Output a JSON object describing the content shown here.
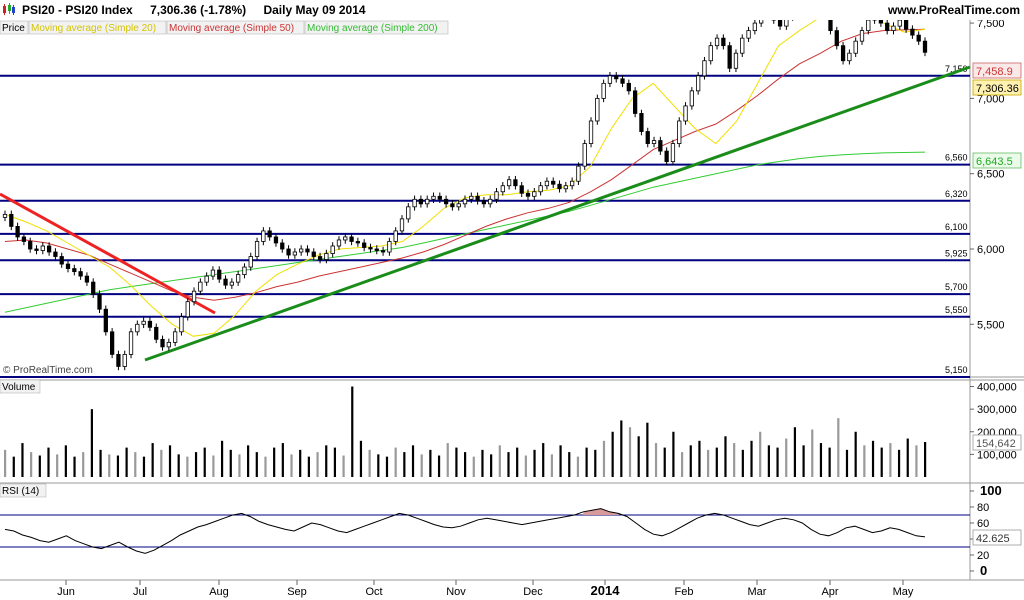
{
  "header": {
    "instrument": "PSI20 - PSI20 Index",
    "price_change": "7,306.36 (-1.78%)",
    "period_date": "Daily  May 09 2014",
    "site": "www.ProRealTime.com"
  },
  "legend": {
    "price": "Price",
    "ma20": "Moving average (Simple 20)",
    "ma50": "Moving average (Simple 50)",
    "ma200": "Moving average (Simple 200)"
  },
  "watermark": "© ProRealTime.com",
  "colors": {
    "ma20": "#f0e000",
    "ma50": "#cc3333",
    "ma200": "#33cc33",
    "trend_up": "#1a8c1a",
    "trend_down": "#ee2222",
    "level_line": "#000080",
    "up_candle": "#ffffff",
    "down_candle": "#000000",
    "rsi_overbought_fill": "#d89a9a"
  },
  "labels": {
    "ma50_value": "7,458.9",
    "last_price": "7,306.36",
    "ma200_value": "6,643.5",
    "volume_value": "154,642",
    "rsi_value": "42.625"
  },
  "panels": {
    "volume_title": "Volume",
    "rsi_title": "RSI (14)"
  },
  "chart_data": [
    {
      "type": "candlestick",
      "title": "PSI20 - PSI20 Index",
      "timeframe": "Daily",
      "x_start": "2014-05-09 (last bar)",
      "price_axis_ticks": [
        "5,500",
        "6,000",
        "6,500",
        "7,000",
        "7,500"
      ],
      "ylim": [
        5130,
        7620
      ],
      "horizontal_levels": [
        7550,
        7150,
        6560,
        6320,
        6100,
        5925,
        5700,
        5550,
        5150
      ],
      "horizontal_level_labels": [
        "7,550",
        "7,150",
        "6,560",
        "6,320",
        "6,100",
        "5,925",
        "5,700",
        "5,550",
        "5,150"
      ],
      "x_tick_labels": [
        "Jun",
        "Jul",
        "Aug",
        "Sep",
        "Oct",
        "Nov",
        "Dec",
        "2014",
        "Feb",
        "Mar",
        "Apr",
        "May"
      ],
      "close_series": [
        6230,
        6150,
        6080,
        6050,
        6000,
        5990,
        6020,
        5980,
        5950,
        5900,
        5870,
        5850,
        5820,
        5780,
        5700,
        5600,
        5450,
        5300,
        5220,
        5300,
        5450,
        5500,
        5520,
        5480,
        5400,
        5350,
        5380,
        5450,
        5550,
        5650,
        5720,
        5780,
        5820,
        5860,
        5800,
        5760,
        5780,
        5830,
        5880,
        5950,
        6050,
        6120,
        6080,
        6040,
        6000,
        5960,
        5980,
        6000,
        5980,
        5950,
        5930,
        5970,
        6020,
        6060,
        6080,
        6050,
        6040,
        6010,
        6000,
        5990,
        5980,
        6050,
        6120,
        6200,
        6280,
        6330,
        6300,
        6330,
        6350,
        6330,
        6300,
        6280,
        6300,
        6330,
        6350,
        6320,
        6300,
        6330,
        6380,
        6420,
        6460,
        6420,
        6370,
        6350,
        6380,
        6420,
        6450,
        6430,
        6400,
        6420,
        6450,
        6550,
        6700,
        6850,
        7000,
        7100,
        7150,
        7130,
        7100,
        7050,
        6900,
        6780,
        6700,
        6720,
        6650,
        6580,
        6700,
        6850,
        6950,
        7050,
        7150,
        7250,
        7350,
        7400,
        7350,
        7200,
        7300,
        7400,
        7450,
        7500,
        7550,
        7580,
        7520,
        7480,
        7540,
        7600,
        7650,
        7700,
        7750,
        7650,
        7550,
        7450,
        7350,
        7250,
        7300,
        7380,
        7450,
        7520,
        7550,
        7500,
        7450,
        7480,
        7520,
        7460,
        7420,
        7380,
        7306
      ]
    },
    {
      "type": "line",
      "title": "Price overlays",
      "series": [
        {
          "name": "Moving average (Simple 20)",
          "values": [
            6230,
            6180,
            6120,
            6040,
            5960,
            5880,
            5760,
            5620,
            5500,
            5420,
            5440,
            5560,
            5720,
            5830,
            5900,
            5960,
            6000,
            6010,
            6020,
            6050,
            6150,
            6270,
            6340,
            6360,
            6360,
            6380,
            6390,
            6420,
            6550,
            6800,
            7000,
            7100,
            6950,
            6800,
            6700,
            6850,
            7100,
            7350,
            7450,
            7540,
            7620,
            7650,
            7500,
            7440,
            7458
          ]
        },
        {
          "name": "Moving average (Simple 50)",
          "values": [
            6050,
            6060,
            6040,
            6000,
            5960,
            5900,
            5840,
            5780,
            5720,
            5680,
            5660,
            5680,
            5710,
            5750,
            5780,
            5820,
            5850,
            5880,
            5910,
            5940,
            5980,
            6030,
            6090,
            6150,
            6200,
            6240,
            6270,
            6310,
            6380,
            6460,
            6560,
            6660,
            6720,
            6780,
            6830,
            6920,
            7020,
            7130,
            7230,
            7300,
            7380,
            7430,
            7450,
            7455,
            7458.9
          ]
        },
        {
          "name": "Moving average (Simple 200)",
          "values": [
            5580,
            5610,
            5640,
            5670,
            5700,
            5730,
            5750,
            5770,
            5790,
            5810,
            5830,
            5850,
            5870,
            5890,
            5910,
            5930,
            5950,
            5970,
            5990,
            6010,
            6040,
            6070,
            6100,
            6130,
            6160,
            6190,
            6220,
            6250,
            6290,
            6330,
            6370,
            6410,
            6440,
            6470,
            6500,
            6530,
            6560,
            6580,
            6600,
            6615,
            6625,
            6632,
            6638,
            6641,
            6643.5
          ]
        }
      ]
    },
    {
      "type": "bar",
      "title": "Volume",
      "y_axis_ticks": [
        "100,000",
        "200,000",
        "300,000",
        "400,000"
      ],
      "ylim": [
        0,
        420000
      ],
      "last_value": 154642,
      "values": [
        120000,
        90000,
        150000,
        110000,
        95000,
        130000,
        100000,
        140000,
        90000,
        110000,
        300000,
        120000,
        100000,
        95000,
        130000,
        110000,
        90000,
        150000,
        120000,
        140000,
        100000,
        90000,
        110000,
        130000,
        95000,
        160000,
        120000,
        100000,
        140000,
        110000,
        90000,
        130000,
        150000,
        100000,
        120000,
        90000,
        110000,
        140000,
        130000,
        95000,
        400000,
        160000,
        120000,
        100000,
        90000,
        130000,
        110000,
        140000,
        100000,
        120000,
        95000,
        150000,
        130000,
        110000,
        90000,
        120000,
        100000,
        140000,
        110000,
        130000,
        95000,
        120000,
        150000,
        100000,
        140000,
        110000,
        90000,
        130000,
        120000,
        160000,
        200000,
        250000,
        220000,
        180000,
        240000,
        150000,
        130000,
        200000,
        110000,
        140000,
        160000,
        120000,
        130000,
        180000,
        150000,
        120000,
        160000,
        200000,
        140000,
        130000,
        170000,
        220000,
        140000,
        210000,
        150000,
        130000,
        260000,
        120000,
        200000,
        140000,
        160000,
        130000,
        150000,
        120000,
        170000,
        140000,
        154642
      ]
    },
    {
      "type": "line",
      "title": "RSI (14)",
      "y_axis_ticks": [
        "0",
        "20",
        "40",
        "60",
        "80",
        "100"
      ],
      "ylim": [
        0,
        100
      ],
      "overbought": 70,
      "oversold": 30,
      "last_value": 42.625,
      "values": [
        52,
        50,
        45,
        42,
        38,
        36,
        40,
        44,
        38,
        34,
        30,
        28,
        32,
        36,
        30,
        25,
        22,
        26,
        32,
        38,
        45,
        50,
        55,
        58,
        62,
        66,
        70,
        72,
        68,
        62,
        58,
        55,
        52,
        50,
        55,
        60,
        58,
        54,
        50,
        48,
        52,
        56,
        60,
        64,
        68,
        72,
        70,
        66,
        62,
        58,
        55,
        54,
        56,
        60,
        64,
        66,
        64,
        62,
        60,
        58,
        60,
        62,
        64,
        66,
        68,
        70,
        74,
        76,
        78,
        74,
        72,
        68,
        60,
        52,
        46,
        44,
        48,
        54,
        60,
        66,
        70,
        72,
        70,
        66,
        62,
        58,
        56,
        60,
        64,
        66,
        64,
        60,
        52,
        46,
        44,
        48,
        54,
        56,
        52,
        48,
        50,
        54,
        52,
        48,
        44,
        42.625
      ]
    }
  ]
}
